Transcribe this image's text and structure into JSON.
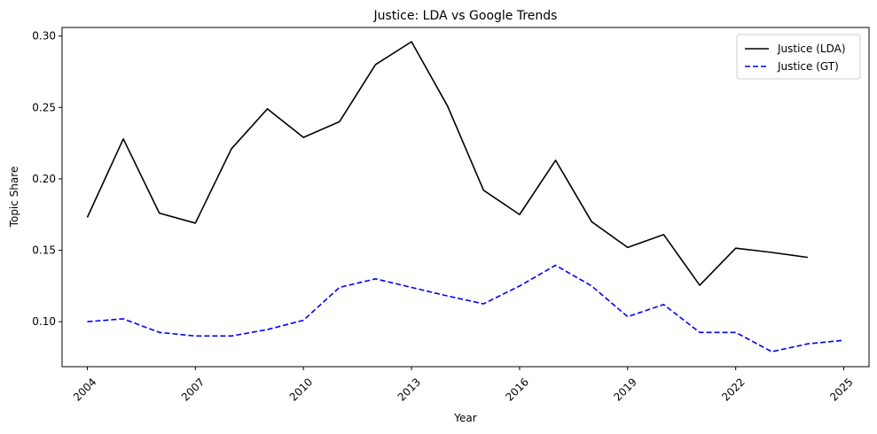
{
  "chart_data": {
    "type": "line",
    "title": "Justice: LDA vs Google Trends",
    "xlabel": "Year",
    "ylabel": "Topic Share",
    "xlim": [
      2003.3,
      2025.7
    ],
    "ylim": [
      0.0685,
      0.306
    ],
    "x_ticks": [
      2004,
      2007,
      2010,
      2013,
      2016,
      2019,
      2022,
      2025
    ],
    "y_ticks": [
      0.1,
      0.15,
      0.2,
      0.25,
      0.3
    ],
    "y_tick_labels": [
      "0.10",
      "0.15",
      "0.20",
      "0.25",
      "0.30"
    ],
    "x_tick_rotation": 45,
    "grid": false,
    "legend": {
      "position": "top-right"
    },
    "series": [
      {
        "name": "Justice (LDA)",
        "color": "#000000",
        "dash": "solid",
        "x": [
          2004,
          2005,
          2006,
          2007,
          2008,
          2009,
          2010,
          2011,
          2012,
          2013,
          2014,
          2015,
          2016,
          2017,
          2018,
          2019,
          2020,
          2021,
          2022,
          2023,
          2024
        ],
        "y": [
          0.173,
          0.228,
          0.176,
          0.169,
          0.221,
          0.249,
          0.229,
          0.24,
          0.28,
          0.296,
          0.251,
          0.192,
          0.175,
          0.213,
          0.17,
          0.152,
          0.161,
          0.1255,
          0.1515,
          0.1485,
          0.145
        ]
      },
      {
        "name": "Justice (GT)",
        "color": "#0000ff",
        "dash": "dashed",
        "x": [
          2004,
          2005,
          2006,
          2007,
          2008,
          2009,
          2010,
          2011,
          2012,
          2013,
          2014,
          2015,
          2016,
          2017,
          2018,
          2019,
          2020,
          2021,
          2022,
          2023,
          2024,
          2025
        ],
        "y": [
          0.1,
          0.102,
          0.0925,
          0.09,
          0.09,
          0.0945,
          0.101,
          0.124,
          0.13,
          0.124,
          0.118,
          0.1125,
          0.125,
          0.1395,
          0.125,
          0.1035,
          0.112,
          0.0925,
          0.0925,
          0.079,
          0.0845,
          0.087
        ]
      }
    ]
  }
}
